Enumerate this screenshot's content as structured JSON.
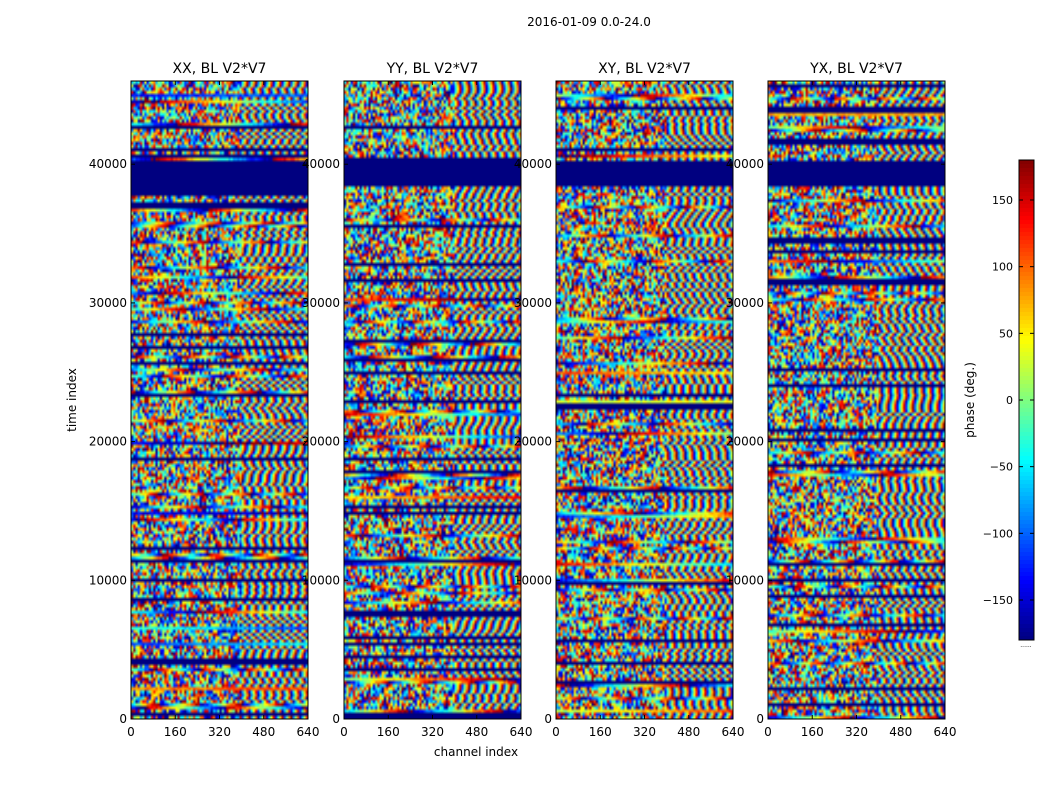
{
  "figure": {
    "suptitle": "2016-01-09 0.0-24.0"
  },
  "chart_data": {
    "type": "heatmap",
    "xlabel": "channel index",
    "ylabel": "time index",
    "xlim": [
      0,
      640
    ],
    "ylim": [
      0,
      46000
    ],
    "xticks": [
      0,
      160,
      320,
      480,
      640
    ],
    "yticks": [
      0,
      10000,
      20000,
      30000,
      40000
    ],
    "colormap": "jet",
    "colorbar": {
      "label": "phase (deg.)",
      "range": [
        -180,
        180
      ],
      "ticks": [
        150,
        100,
        50,
        0,
        -50,
        -100,
        -150
      ],
      "tick_labels": [
        "150",
        "100",
        "50",
        "0",
        "−50",
        "−100",
        "−150"
      ]
    },
    "panels": [
      {
        "title": "XX, BL V2*V7",
        "seed": 11
      },
      {
        "title": "YY, BL V2*V7",
        "seed": 23
      },
      {
        "title": "XY, BL V2*V7",
        "seed": 37
      },
      {
        "title": "YX, BL V2*V7",
        "seed": 53
      }
    ],
    "flagged_band": [
      38300,
      40300
    ],
    "colorbar_footnote": "......"
  }
}
